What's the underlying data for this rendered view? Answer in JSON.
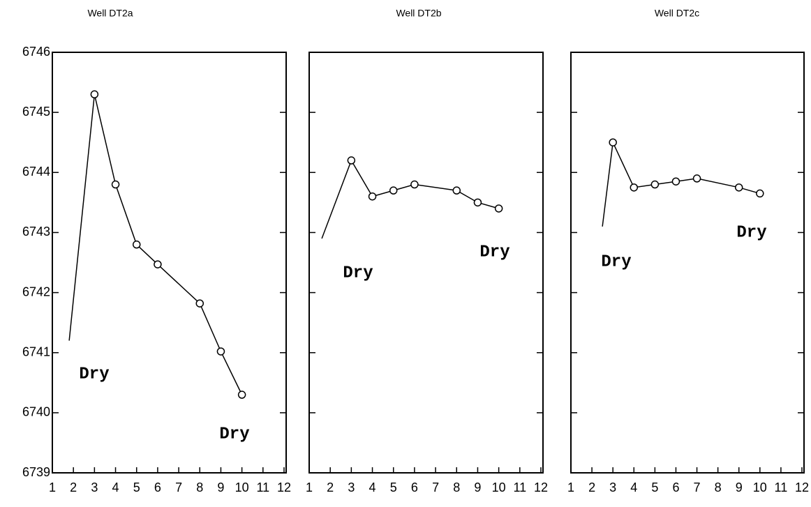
{
  "chart_data": [
    {
      "type": "line",
      "title": "Well DT2a",
      "x": [
        1.8,
        3,
        4,
        5,
        6,
        8,
        9,
        10
      ],
      "series": [
        {
          "color": "#000000",
          "values": [
            6741.2,
            6745.3,
            6743.8,
            6742.8,
            6742.47,
            6741.82,
            6741.02,
            6740.3
          ],
          "markers": [
            false,
            true,
            true,
            true,
            true,
            true,
            true,
            true
          ]
        }
      ],
      "xlim": [
        1,
        12.1
      ],
      "ylim": [
        6739,
        6746
      ],
      "xticks": [
        1,
        2,
        3,
        4,
        5,
        6,
        7,
        8,
        9,
        10,
        11,
        12
      ],
      "yticks": [
        6739,
        6740,
        6741,
        6742,
        6743,
        6744,
        6745,
        6746
      ],
      "y_tick_labels": true,
      "annotations": [
        "Dry",
        "Dry"
      ]
    },
    {
      "type": "line",
      "title": "Well DT2b",
      "x": [
        1.6,
        3,
        4,
        5,
        6,
        8,
        9,
        10
      ],
      "series": [
        {
          "color": "#000000",
          "values": [
            6742.9,
            6744.2,
            6743.6,
            6743.7,
            6743.8,
            6743.7,
            6743.5,
            6743.4
          ],
          "markers": [
            false,
            true,
            true,
            true,
            true,
            true,
            true,
            true
          ]
        }
      ],
      "xlim": [
        1,
        12.1
      ],
      "ylim": [
        6739,
        6746
      ],
      "xticks": [
        1,
        2,
        3,
        4,
        5,
        6,
        7,
        8,
        9,
        10,
        11,
        12
      ],
      "yticks": [
        6739,
        6740,
        6741,
        6742,
        6743,
        6744,
        6745,
        6746
      ],
      "y_tick_labels": false,
      "annotations": [
        "Dry",
        "Dry"
      ]
    },
    {
      "type": "line",
      "title": "Well DT2c",
      "x": [
        2.5,
        3,
        4,
        5,
        6,
        7,
        9,
        10
      ],
      "series": [
        {
          "color": "#000000",
          "values": [
            6743.1,
            6744.5,
            6743.75,
            6743.8,
            6743.85,
            6743.9,
            6743.75,
            6743.65
          ],
          "markers": [
            false,
            true,
            true,
            true,
            true,
            true,
            true,
            true
          ]
        }
      ],
      "xlim": [
        1,
        12.1
      ],
      "ylim": [
        6739,
        6746
      ],
      "xticks": [
        1,
        2,
        3,
        4,
        5,
        6,
        7,
        8,
        9,
        10,
        11,
        12
      ],
      "yticks": [
        6739,
        6740,
        6741,
        6742,
        6743,
        6744,
        6745,
        6746
      ],
      "y_tick_labels": false,
      "annotations": [
        "Dry",
        "Dry"
      ]
    }
  ]
}
